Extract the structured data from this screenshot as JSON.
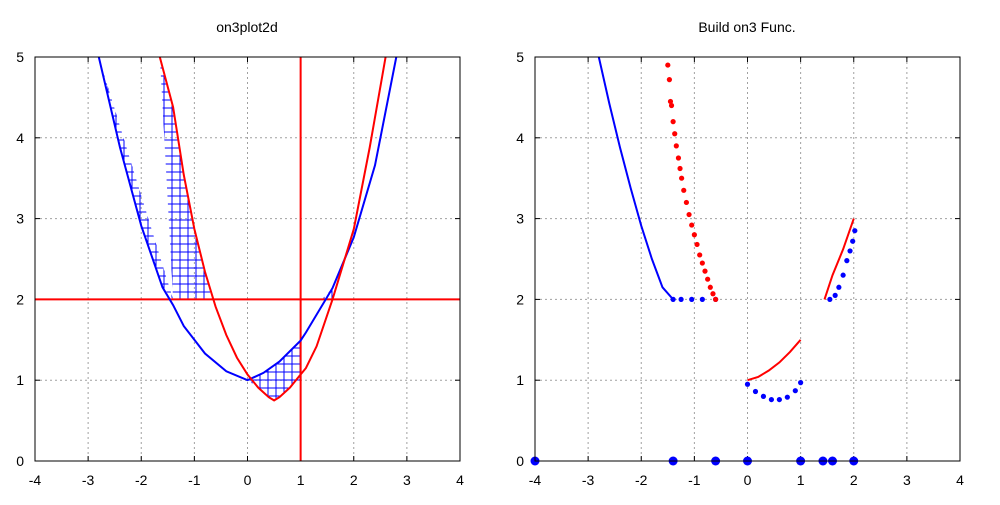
{
  "chart_data": [
    {
      "type": "line",
      "title": "on3plot2d",
      "xlim": [
        -4,
        4
      ],
      "ylim": [
        0,
        5
      ],
      "xticks": [
        "-4",
        "-3",
        "-2",
        "-1",
        "0",
        "1",
        "2",
        "3",
        "4"
      ],
      "yticks": [
        "0",
        "1",
        "2",
        "3",
        "4",
        "5"
      ],
      "grid": true,
      "colors": {
        "blue": "#0000ff",
        "red": "#ff0000"
      },
      "series": [
        {
          "color": "blue",
          "x": [
            -2.8,
            -2.4,
            -2.0,
            -1.6,
            -1.4,
            -1.2,
            -0.8,
            -0.4,
            0.0,
            0.3,
            0.6,
            1.0,
            1.1,
            1.6,
            2.0,
            2.4,
            2.8
          ],
          "y": [
            5.0,
            3.88,
            2.91,
            2.15,
            1.93,
            1.67,
            1.33,
            1.11,
            1.0,
            1.09,
            1.23,
            1.49,
            1.59,
            2.14,
            2.77,
            3.66,
            5.0
          ]
        },
        {
          "color": "red",
          "x": [
            -1.65,
            -1.4,
            -1.2,
            -1.0,
            -0.8,
            -0.6,
            -0.4,
            -0.2,
            0.0,
            0.2,
            0.4,
            0.5,
            0.6,
            0.8,
            1.0,
            1.1,
            1.3,
            1.6,
            2.0,
            2.3,
            2.6
          ],
          "y": [
            5.0,
            4.38,
            3.54,
            2.87,
            2.34,
            1.91,
            1.56,
            1.28,
            1.07,
            0.91,
            0.79,
            0.75,
            0.79,
            0.91,
            1.07,
            1.15,
            1.42,
            2.0,
            2.87,
            3.88,
            5.0
          ]
        }
      ],
      "hlines": [
        {
          "y": 2,
          "color": "red"
        }
      ],
      "vlines": [
        {
          "x": 1,
          "color": "red"
        }
      ],
      "hatched_regions": [
        {
          "color": "blue",
          "upper": {
            "x": [
              -2.8,
              -2.4,
              -2.0,
              -1.6,
              -1.4
            ],
            "y": [
              5.0,
              3.88,
              2.91,
              2.15,
              2.0
            ]
          },
          "lower": {
            "x": [
              -1.65,
              -1.4,
              -1.2,
              -1.0,
              -0.8,
              -0.67,
              -1.4
            ],
            "y": [
              5.0,
              4.38,
              3.54,
              2.87,
              2.34,
              2.0,
              2.0
            ]
          }
        },
        {
          "color": "blue",
          "upper": {
            "x": [
              0.0,
              0.3,
              0.6,
              1.0
            ],
            "y": [
              1.0,
              1.09,
              1.23,
              1.49
            ]
          },
          "lower": {
            "x": [
              1.0,
              0.8,
              0.6,
              0.5,
              0.4,
              0.2,
              0.0
            ],
            "y": [
              1.0,
              0.91,
              0.79,
              0.75,
              0.79,
              0.91,
              1.0
            ]
          }
        },
        {
          "color": "blue",
          "upper": {
            "x": [
              1.4,
              1.6
            ],
            "y": [
              2.0,
              2.14
            ]
          },
          "lower": {
            "x": [
              1.6,
              1.4
            ],
            "y": [
              2.0,
              2.0
            ]
          }
        }
      ]
    },
    {
      "type": "scatter",
      "title": "Build on3 Func.",
      "xlim": [
        -4,
        4
      ],
      "ylim": [
        0,
        5
      ],
      "xticks": [
        "-4",
        "-3",
        "-2",
        "-1",
        "0",
        "1",
        "2",
        "3",
        "4"
      ],
      "yticks": [
        "0",
        "1",
        "2",
        "3",
        "4",
        "5"
      ],
      "grid": true,
      "colors": {
        "blue": "#0000ff",
        "red": "#ff0000"
      },
      "series": [
        {
          "color": "blue",
          "style": "line",
          "x": [
            -2.8,
            -2.6,
            -2.4,
            -2.2,
            -2.0,
            -1.8,
            -1.6,
            -1.4
          ],
          "y": [
            5.0,
            4.42,
            3.88,
            3.38,
            2.91,
            2.5,
            2.15,
            2.0
          ]
        },
        {
          "color": "blue",
          "style": "markers",
          "x": [
            -1.4,
            -1.25,
            -1.05,
            -0.85,
            -0.6
          ],
          "y": [
            2.0,
            2.0,
            2.0,
            2.0,
            2.0
          ]
        },
        {
          "color": "red",
          "style": "markers",
          "x": [
            -1.5,
            -1.47,
            -1.45,
            -1.43,
            -1.4,
            -1.37,
            -1.34,
            -1.3,
            -1.27,
            -1.24,
            -1.2,
            -1.15,
            -1.1,
            -1.05,
            -1.0,
            -0.95,
            -0.9,
            -0.85,
            -0.8,
            -0.75,
            -0.7,
            -0.65,
            -0.6
          ],
          "y": [
            4.9,
            4.72,
            4.45,
            4.4,
            4.2,
            4.05,
            3.9,
            3.75,
            3.62,
            3.5,
            3.35,
            3.2,
            3.05,
            2.92,
            2.8,
            2.68,
            2.55,
            2.45,
            2.35,
            2.25,
            2.15,
            2.07,
            2.0
          ]
        },
        {
          "color": "blue",
          "style": "markers",
          "x": [
            0.0,
            0.15,
            0.3,
            0.45,
            0.6,
            0.75,
            0.9,
            1.0
          ],
          "y": [
            0.95,
            0.86,
            0.8,
            0.76,
            0.76,
            0.79,
            0.87,
            0.97
          ]
        },
        {
          "color": "red",
          "style": "line",
          "x": [
            0.0,
            0.2,
            0.4,
            0.6,
            0.8,
            1.0
          ],
          "y": [
            1.0,
            1.04,
            1.12,
            1.22,
            1.35,
            1.5
          ]
        },
        {
          "color": "red",
          "style": "line",
          "x": [
            1.45,
            1.6,
            1.8,
            2.0
          ],
          "y": [
            2.0,
            2.3,
            2.62,
            3.0
          ]
        },
        {
          "color": "blue",
          "style": "markers",
          "x": [
            1.55,
            1.65,
            1.72,
            1.8,
            1.87,
            1.93,
            1.98,
            2.02
          ],
          "y": [
            2.0,
            2.05,
            2.15,
            2.3,
            2.48,
            2.6,
            2.72,
            2.85
          ]
        },
        {
          "color": "blue",
          "style": "dots",
          "x": [
            -4.0,
            -1.4,
            -0.6,
            0.0,
            1.0,
            1.42,
            1.6,
            2.0
          ],
          "y": [
            0,
            0,
            0,
            0,
            0,
            0,
            0,
            0
          ]
        }
      ]
    }
  ]
}
